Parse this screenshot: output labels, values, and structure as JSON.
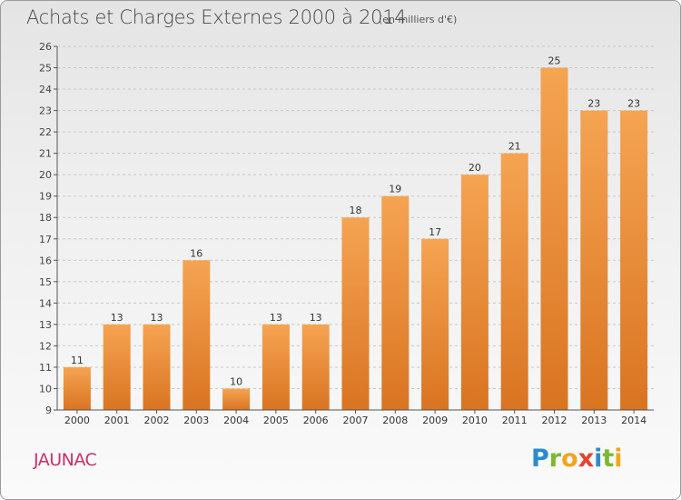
{
  "header": {
    "title": "Achats et Charges Externes 2000 à 2014",
    "subtitle": "(en milliers d'€)"
  },
  "footer": {
    "place": "JAUNAC",
    "logo_text": "Proxiti",
    "logo_letters": [
      "P",
      "r",
      "o",
      "x",
      "i",
      "t",
      "i"
    ]
  },
  "colors": {
    "bar_light": "#f5a452",
    "bar_dark": "#d97421",
    "title": "#444444",
    "place": "#cc2f6a",
    "grid": "#c8c8c8",
    "axis": "#555555"
  },
  "chart_data": {
    "type": "bar",
    "title": "Achats et Charges Externes 2000 à 2014",
    "subtitle": "(en milliers d'€)",
    "xlabel": "",
    "ylabel": "",
    "categories": [
      "2000",
      "2001",
      "2002",
      "2003",
      "2004",
      "2005",
      "2006",
      "2007",
      "2008",
      "2009",
      "2010",
      "2011",
      "2012",
      "2013",
      "2014"
    ],
    "values": [
      11,
      13,
      13,
      16,
      10,
      13,
      13,
      18,
      19,
      17,
      20,
      21,
      25,
      23,
      23
    ],
    "ylim": [
      9,
      26
    ],
    "yticks": [
      9,
      10,
      11,
      12,
      13,
      14,
      15,
      16,
      17,
      18,
      19,
      20,
      21,
      22,
      23,
      24,
      25,
      26
    ],
    "grid": "horizontal dashed",
    "data_labels": true,
    "legend": "none"
  }
}
